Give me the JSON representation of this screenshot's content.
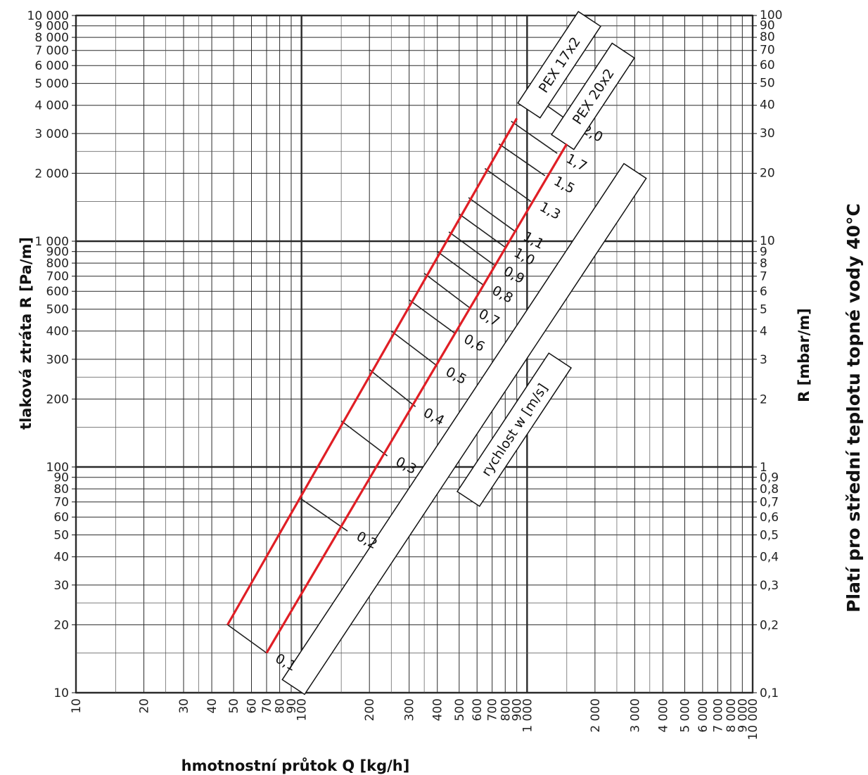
{
  "chart_data": {
    "type": "line",
    "title": "",
    "xlabel": "hmotnostní průtok Q [kg/h]",
    "ylabel": "tlaková ztráta R [Pa/m]",
    "y2label": "R [mbar/m]",
    "side_note": "Platí pro střední teplotu topné vody 40°C",
    "x_scale": "log",
    "y_scale": "log",
    "xlim": [
      10,
      10000
    ],
    "ylim": [
      10,
      10000
    ],
    "grid": true,
    "x_ticks": [
      {
        "v": 10,
        "t": "10"
      },
      {
        "v": 20,
        "t": "20"
      },
      {
        "v": 30,
        "t": "30"
      },
      {
        "v": 40,
        "t": "40"
      },
      {
        "v": 50,
        "t": "50"
      },
      {
        "v": 60,
        "t": "60"
      },
      {
        "v": 70,
        "t": "70"
      },
      {
        "v": 80,
        "t": "80"
      },
      {
        "v": 90,
        "t": "90"
      },
      {
        "v": 100,
        "t": "100"
      },
      {
        "v": 200,
        "t": "200"
      },
      {
        "v": 300,
        "t": "300"
      },
      {
        "v": 400,
        "t": "400"
      },
      {
        "v": 500,
        "t": "500"
      },
      {
        "v": 600,
        "t": "600"
      },
      {
        "v": 700,
        "t": "700"
      },
      {
        "v": 800,
        "t": "800"
      },
      {
        "v": 900,
        "t": "900"
      },
      {
        "v": 1000,
        "t": "1 000"
      },
      {
        "v": 2000,
        "t": "2 000"
      },
      {
        "v": 3000,
        "t": "3 000"
      },
      {
        "v": 4000,
        "t": "4 000"
      },
      {
        "v": 5000,
        "t": "5 000"
      },
      {
        "v": 6000,
        "t": "6 000"
      },
      {
        "v": 7000,
        "t": "7 000"
      },
      {
        "v": 8000,
        "t": "8 000"
      },
      {
        "v": 9000,
        "t": "9 000"
      },
      {
        "v": 10000,
        "t": "10 000"
      }
    ],
    "y_ticks_left": [
      {
        "v": 10,
        "t": "10"
      },
      {
        "v": 20,
        "t": "20"
      },
      {
        "v": 30,
        "t": "30"
      },
      {
        "v": 40,
        "t": "40"
      },
      {
        "v": 50,
        "t": "50"
      },
      {
        "v": 60,
        "t": "60"
      },
      {
        "v": 70,
        "t": "70"
      },
      {
        "v": 80,
        "t": "80"
      },
      {
        "v": 90,
        "t": "90"
      },
      {
        "v": 100,
        "t": "100"
      },
      {
        "v": 200,
        "t": "200"
      },
      {
        "v": 300,
        "t": "300"
      },
      {
        "v": 400,
        "t": "400"
      },
      {
        "v": 500,
        "t": "500"
      },
      {
        "v": 600,
        "t": "600"
      },
      {
        "v": 700,
        "t": "700"
      },
      {
        "v": 800,
        "t": "800"
      },
      {
        "v": 900,
        "t": "900"
      },
      {
        "v": 1000,
        "t": "1 000"
      },
      {
        "v": 2000,
        "t": "2 000"
      },
      {
        "v": 3000,
        "t": "3 000"
      },
      {
        "v": 4000,
        "t": "4 000"
      },
      {
        "v": 5000,
        "t": "5 000"
      },
      {
        "v": 6000,
        "t": "6 000"
      },
      {
        "v": 7000,
        "t": "7 000"
      },
      {
        "v": 8000,
        "t": "8 000"
      },
      {
        "v": 9000,
        "t": "9 000"
      },
      {
        "v": 10000,
        "t": "10 000"
      }
    ],
    "y_ticks_right": [
      {
        "v": 10,
        "t": "0,1"
      },
      {
        "v": 20,
        "t": "0,2"
      },
      {
        "v": 30,
        "t": "0,3"
      },
      {
        "v": 40,
        "t": "0,4"
      },
      {
        "v": 50,
        "t": "0,5"
      },
      {
        "v": 60,
        "t": "0,6"
      },
      {
        "v": 70,
        "t": "0,7"
      },
      {
        "v": 80,
        "t": "0,8"
      },
      {
        "v": 90,
        "t": "0,9"
      },
      {
        "v": 100,
        "t": "1"
      },
      {
        "v": 200,
        "t": "2"
      },
      {
        "v": 300,
        "t": "3"
      },
      {
        "v": 400,
        "t": "4"
      },
      {
        "v": 500,
        "t": "5"
      },
      {
        "v": 600,
        "t": "6"
      },
      {
        "v": 700,
        "t": "7"
      },
      {
        "v": 800,
        "t": "8"
      },
      {
        "v": 900,
        "t": "9"
      },
      {
        "v": 1000,
        "t": "10"
      },
      {
        "v": 2000,
        "t": "20"
      },
      {
        "v": 3000,
        "t": "30"
      },
      {
        "v": 4000,
        "t": "40"
      },
      {
        "v": 5000,
        "t": "50"
      },
      {
        "v": 6000,
        "t": "60"
      },
      {
        "v": 7000,
        "t": "70"
      },
      {
        "v": 8000,
        "t": "80"
      },
      {
        "v": 9000,
        "t": "90"
      },
      {
        "v": 10000,
        "t": "100"
      }
    ],
    "series": [
      {
        "name": "PEX 17x2",
        "color": "#e01e25",
        "x": [
          47,
          900
        ],
        "y": [
          20,
          3500
        ]
      },
      {
        "name": "PEX 20x2",
        "color": "#e01e25",
        "x": [
          70,
          1500
        ],
        "y": [
          15,
          2700
        ]
      }
    ],
    "velocity_label": "rychlost w [m/s]",
    "velocities": [
      {
        "label": "0,1",
        "x1": 47,
        "y1": 20,
        "x2": 70,
        "y2": 15
      },
      {
        "label": "0,2",
        "x1": 100,
        "y1": 72,
        "x2": 160,
        "y2": 52
      },
      {
        "label": "0,3",
        "x1": 150,
        "y1": 160,
        "x2": 240,
        "y2": 112
      },
      {
        "label": "0,4",
        "x1": 200,
        "y1": 270,
        "x2": 320,
        "y2": 185
      },
      {
        "label": "0,5",
        "x1": 250,
        "y1": 400,
        "x2": 400,
        "y2": 280
      },
      {
        "label": "0,6",
        "x1": 300,
        "y1": 550,
        "x2": 480,
        "y2": 390
      },
      {
        "label": "0,7",
        "x1": 350,
        "y1": 720,
        "x2": 560,
        "y2": 505
      },
      {
        "label": "0,8",
        "x1": 400,
        "y1": 900,
        "x2": 640,
        "y2": 640
      },
      {
        "label": "0,9",
        "x1": 450,
        "y1": 1100,
        "x2": 720,
        "y2": 780
      },
      {
        "label": "1,0",
        "x1": 500,
        "y1": 1320,
        "x2": 800,
        "y2": 940
      },
      {
        "label": "1,1",
        "x1": 550,
        "y1": 1560,
        "x2": 880,
        "y2": 1110
      },
      {
        "label": "1,3",
        "x1": 650,
        "y1": 2100,
        "x2": 1040,
        "y2": 1500
      },
      {
        "label": "1,5",
        "x1": 750,
        "y1": 2700,
        "x2": 1200,
        "y2": 1950
      },
      {
        "label": "1,7",
        "x1": 850,
        "y1": 3400,
        "x2": 1360,
        "y2": 2450
      },
      {
        "label": "2,0",
        "x1": 1000,
        "y1": 4600,
        "x2": 1600,
        "y2": 3300
      }
    ]
  }
}
